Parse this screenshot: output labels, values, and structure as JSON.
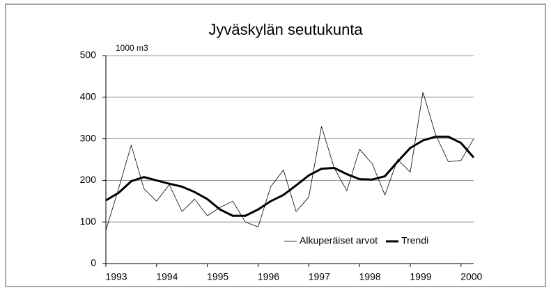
{
  "chart_data": {
    "type": "line",
    "title": "Jyväskylän seutukunta",
    "y_label": "1000 m3",
    "x": [
      1993,
      1993.25,
      1993.5,
      1993.75,
      1994,
      1994.25,
      1994.5,
      1994.75,
      1995,
      1995.25,
      1995.5,
      1995.75,
      1996,
      1996.25,
      1996.5,
      1996.75,
      1997,
      1997.25,
      1997.5,
      1997.75,
      1998,
      1998.25,
      1998.5,
      1998.75,
      1999,
      1999.25,
      1999.5,
      1999.75,
      2000,
      2000.25
    ],
    "series": [
      {
        "name": "Alkuperäiset arvot",
        "color": "#000000",
        "width": 0.8,
        "values": [
          80,
          180,
          285,
          180,
          150,
          190,
          125,
          155,
          115,
          135,
          150,
          100,
          88,
          185,
          225,
          125,
          160,
          330,
          230,
          175,
          275,
          240,
          165,
          250,
          220,
          412,
          310,
          245,
          248,
          300
        ]
      },
      {
        "name": "Trendi",
        "color": "#000000",
        "width": 3,
        "values": [
          152,
          170,
          198,
          208,
          200,
          192,
          185,
          172,
          155,
          130,
          115,
          115,
          130,
          150,
          165,
          188,
          212,
          228,
          230,
          215,
          203,
          202,
          210,
          245,
          278,
          296,
          305,
          305,
          290,
          255
        ]
      }
    ],
    "xlim": [
      1993,
      2000.25
    ],
    "xticks": [
      1993,
      1994,
      1995,
      1996,
      1997,
      1998,
      1999,
      2000
    ],
    "ylim": [
      0,
      500
    ],
    "yticks": [
      0,
      100,
      200,
      300,
      400,
      500
    ],
    "grid": true,
    "legend": "lower right"
  }
}
